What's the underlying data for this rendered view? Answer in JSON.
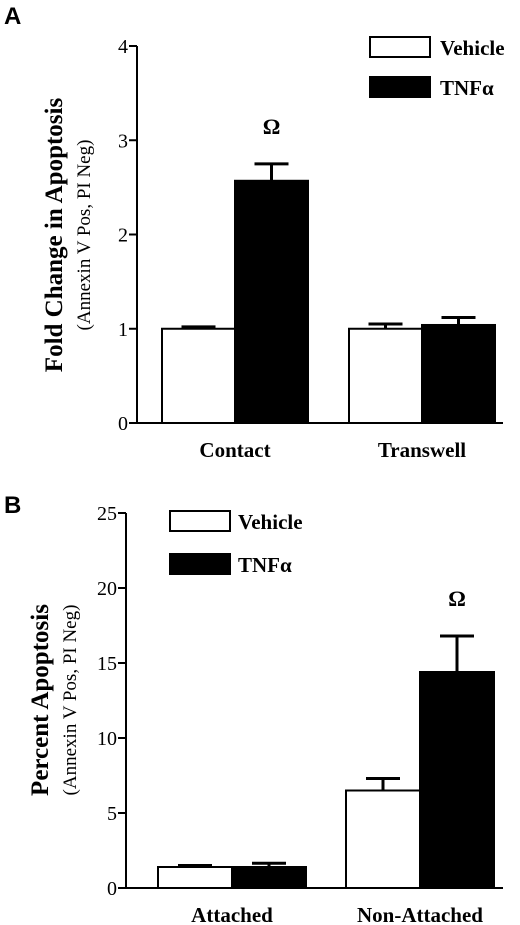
{
  "chart_data": [
    {
      "panel": "A",
      "type": "bar",
      "categories": [
        "Contact",
        "Transwell"
      ],
      "series": [
        {
          "name": "Vehicle",
          "values": [
            1.0,
            1.0
          ],
          "errors": [
            0.02,
            0.05
          ],
          "color": "#ffffff"
        },
        {
          "name": "TNFα",
          "values": [
            2.57,
            1.04
          ],
          "errors": [
            0.18,
            0.08
          ],
          "color": "#000000"
        }
      ],
      "ylabel": "Fold Change in Apoptosis",
      "ylabel_sub": "(Annexin V Pos, PI Neg)",
      "ylim": [
        0,
        4
      ],
      "yticks": [
        "0",
        "1",
        "2",
        "3",
        "4"
      ],
      "annotations": [
        {
          "text": "Ω",
          "category": "Contact",
          "series": "TNFα"
        }
      ],
      "legend": "top-right"
    },
    {
      "panel": "B",
      "type": "bar",
      "categories": [
        "Attached",
        "Non-Attached"
      ],
      "series": [
        {
          "name": "Vehicle",
          "values": [
            1.4,
            6.5
          ],
          "errors": [
            0.1,
            0.8
          ],
          "color": "#ffffff"
        },
        {
          "name": "TNFα",
          "values": [
            1.4,
            14.4
          ],
          "errors": [
            0.25,
            2.4
          ],
          "color": "#000000"
        }
      ],
      "ylabel": "Percent Apoptosis",
      "ylabel_sub": "(Annexin V Pos, PI Neg)",
      "ylim": [
        0,
        25
      ],
      "yticks": [
        "0",
        "5",
        "10",
        "15",
        "20",
        "25"
      ],
      "annotations": [
        {
          "text": "Ω",
          "category": "Non-Attached",
          "series": "TNFα"
        }
      ],
      "legend": "top-right"
    }
  ]
}
